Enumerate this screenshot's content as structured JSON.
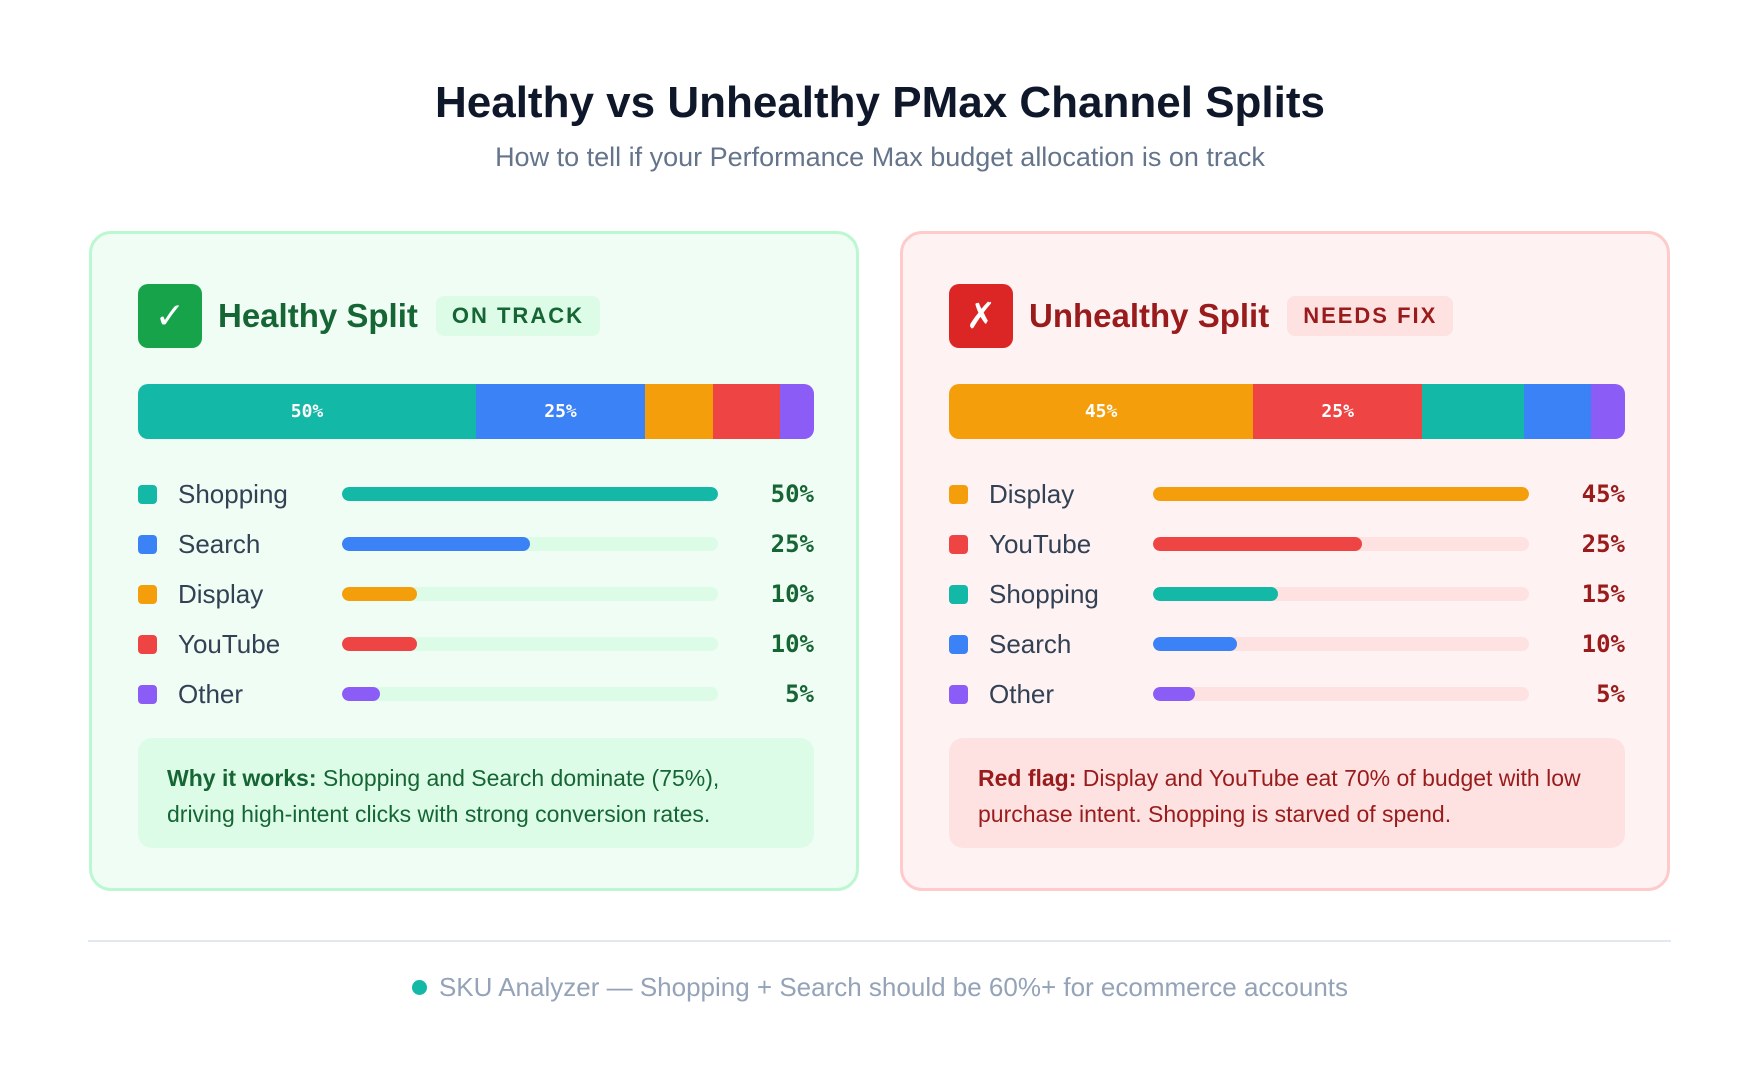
{
  "header": {
    "title": "Healthy vs Unhealthy PMax Channel Splits",
    "subtitle": "How to tell if your Performance Max budget allocation is on track"
  },
  "colors": {
    "Shopping": "#14b8a6",
    "Search": "#3b82f6",
    "Display": "#f59e0b",
    "YouTube": "#ef4444",
    "Other": "#8b5cf6"
  },
  "cards": [
    {
      "icon": "check-icon",
      "icon_glyph": "✓",
      "title": "Healthy Split",
      "badge": "ON TRACK",
      "stack_labels": [
        "50%",
        "25%",
        "",
        "",
        ""
      ],
      "channels": [
        {
          "name": "Shopping",
          "value": 50,
          "pct": "50%"
        },
        {
          "name": "Search",
          "value": 25,
          "pct": "25%"
        },
        {
          "name": "Display",
          "value": 10,
          "pct": "10%"
        },
        {
          "name": "YouTube",
          "value": 10,
          "pct": "10%"
        },
        {
          "name": "Other",
          "value": 5,
          "pct": "5%"
        }
      ],
      "note_label": "Why it works:",
      "note_text": " Shopping and Search dominate (75%), driving high-intent clicks with strong conversion rates."
    },
    {
      "icon": "x-icon",
      "icon_glyph": "✗",
      "title": "Unhealthy Split",
      "badge": "NEEDS FIX",
      "stack_labels": [
        "45%",
        "25%",
        "",
        "",
        ""
      ],
      "channels": [
        {
          "name": "Display",
          "value": 45,
          "pct": "45%"
        },
        {
          "name": "YouTube",
          "value": 25,
          "pct": "25%"
        },
        {
          "name": "Shopping",
          "value": 15,
          "pct": "15%"
        },
        {
          "name": "Search",
          "value": 10,
          "pct": "10%"
        },
        {
          "name": "Other",
          "value": 5,
          "pct": "5%"
        }
      ],
      "note_label": "Red flag:",
      "note_text": " Display and YouTube eat 70% of budget with low purchase intent. Shopping is starved of spend."
    }
  ],
  "footer": {
    "text": "SKU Analyzer — Shopping + Search should be 60%+ for ecommerce accounts"
  }
}
